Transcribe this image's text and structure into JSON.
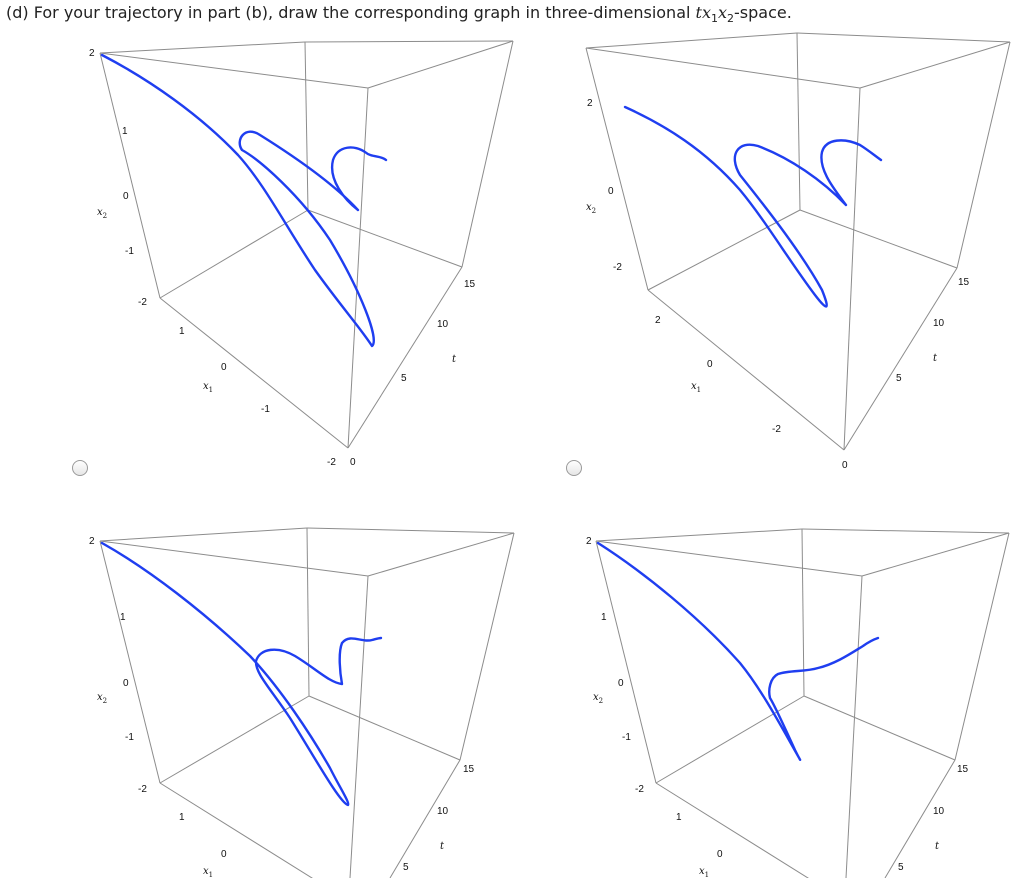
{
  "question": {
    "prefix": "(d) For your trajectory in part (b), draw the corresponding graph in three-dimensional ",
    "var_t": "tx",
    "sub1": "1",
    "var_x2": "x",
    "sub2": "2",
    "suffix": "-space."
  },
  "curve_color": "#1f3ef0",
  "options": [
    {
      "ticks": [
        "2",
        "1",
        "0",
        "-1",
        "-2",
        "1",
        "0",
        "-1",
        "-2",
        "0",
        "5",
        "10",
        "15"
      ],
      "axis_x1": "x",
      "axis_x1_sub": "1",
      "axis_x2": "x",
      "axis_x2_sub": "2",
      "axis_t": "t"
    },
    {
      "ticks": [
        "2",
        "0",
        "-2",
        "2",
        "0",
        "-2",
        "0",
        "5",
        "10",
        "15"
      ],
      "axis_x1": "x",
      "axis_x1_sub": "1",
      "axis_x2": "x",
      "axis_x2_sub": "2",
      "axis_t": "t"
    },
    {
      "ticks": [
        "2",
        "1",
        "0",
        "-1",
        "-2",
        "1",
        "0",
        "5",
        "10",
        "15"
      ],
      "axis_x1": "x",
      "axis_x1_sub": "1",
      "axis_x2": "x",
      "axis_x2_sub": "2",
      "axis_t": "t"
    },
    {
      "ticks": [
        "2",
        "1",
        "0",
        "-1",
        "-2",
        "1",
        "0",
        "5",
        "10",
        "15"
      ],
      "axis_x1": "x",
      "axis_x1_sub": "1",
      "axis_x2": "x",
      "axis_x2_sub": "2",
      "axis_t": "t"
    }
  ]
}
